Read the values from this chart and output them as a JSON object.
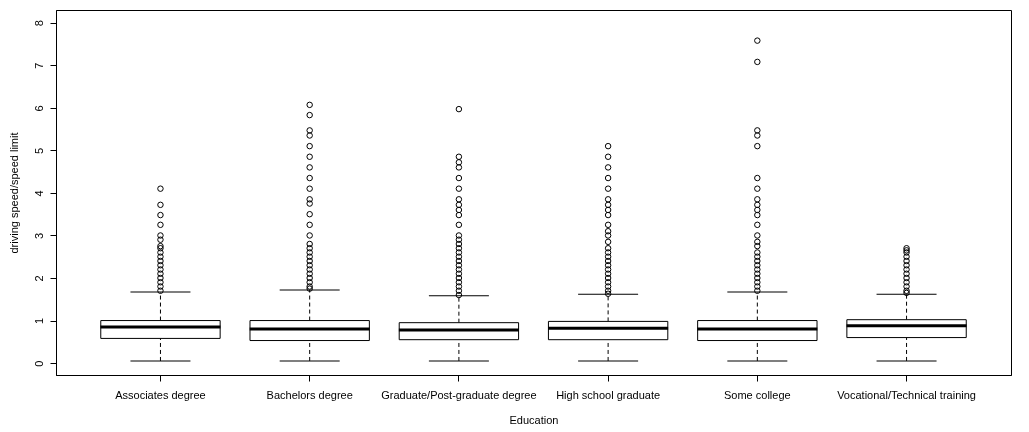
{
  "chart_data": {
    "type": "box",
    "xlabel": "Education",
    "ylabel": "driving speed/speed limit",
    "categories": [
      "Associates degree",
      "Bachelors degree",
      "Graduate/Post-graduate degree",
      "High school graduate",
      "Some college",
      "Vocational/Technical training"
    ],
    "ylim": [
      -0.28,
      8.3
    ],
    "yticks": [
      0,
      1,
      2,
      3,
      4,
      5,
      6,
      7,
      8
    ],
    "grid": false,
    "marker": "circle",
    "color": "#000000",
    "boxes": [
      {
        "low": 0.05,
        "q1": 0.58,
        "median": 0.85,
        "q3": 1.0,
        "high": 1.67,
        "outliers": [
          4.1,
          3.72,
          3.48,
          3.25,
          3.0,
          2.9,
          2.75,
          2.7,
          2.6,
          2.5,
          2.4,
          2.3,
          2.2,
          2.1,
          2.0,
          1.9,
          1.8,
          1.7
        ]
      },
      {
        "low": 0.05,
        "q1": 0.53,
        "median": 0.8,
        "q3": 1.0,
        "high": 1.72,
        "outliers": [
          6.07,
          5.83,
          5.47,
          5.35,
          5.1,
          4.85,
          4.6,
          4.35,
          4.1,
          3.85,
          3.75,
          3.5,
          3.25,
          3.0,
          2.8,
          2.7,
          2.6,
          2.5,
          2.4,
          2.3,
          2.2,
          2.1,
          2.0,
          1.9,
          1.8,
          1.75
        ]
      },
      {
        "low": 0.05,
        "q1": 0.55,
        "median": 0.78,
        "q3": 0.95,
        "high": 1.58,
        "outliers": [
          5.97,
          4.85,
          4.72,
          4.6,
          4.35,
          4.1,
          3.85,
          3.72,
          3.6,
          3.48,
          3.25,
          3.0,
          2.9,
          2.8,
          2.7,
          2.6,
          2.5,
          2.4,
          2.3,
          2.2,
          2.1,
          2.0,
          1.9,
          1.8,
          1.7,
          1.6
        ]
      },
      {
        "low": 0.05,
        "q1": 0.55,
        "median": 0.82,
        "q3": 0.98,
        "high": 1.62,
        "outliers": [
          5.1,
          4.85,
          4.6,
          4.35,
          4.1,
          3.85,
          3.72,
          3.6,
          3.48,
          3.25,
          3.1,
          3.0,
          2.85,
          2.7,
          2.6,
          2.5,
          2.4,
          2.3,
          2.2,
          2.1,
          2.0,
          1.9,
          1.8,
          1.7,
          1.63
        ]
      },
      {
        "low": 0.05,
        "q1": 0.53,
        "median": 0.8,
        "q3": 1.0,
        "high": 1.67,
        "outliers": [
          7.58,
          7.08,
          5.47,
          5.35,
          5.1,
          4.35,
          4.1,
          3.85,
          3.72,
          3.6,
          3.48,
          3.25,
          3.0,
          2.85,
          2.75,
          2.6,
          2.5,
          2.4,
          2.3,
          2.2,
          2.1,
          2.0,
          1.9,
          1.8,
          1.7
        ]
      },
      {
        "low": 0.05,
        "q1": 0.6,
        "median": 0.88,
        "q3": 1.02,
        "high": 1.62,
        "outliers": [
          2.7,
          2.65,
          2.6,
          2.5,
          2.4,
          2.3,
          2.2,
          2.1,
          2.0,
          1.9,
          1.8,
          1.7,
          1.65
        ]
      }
    ]
  }
}
